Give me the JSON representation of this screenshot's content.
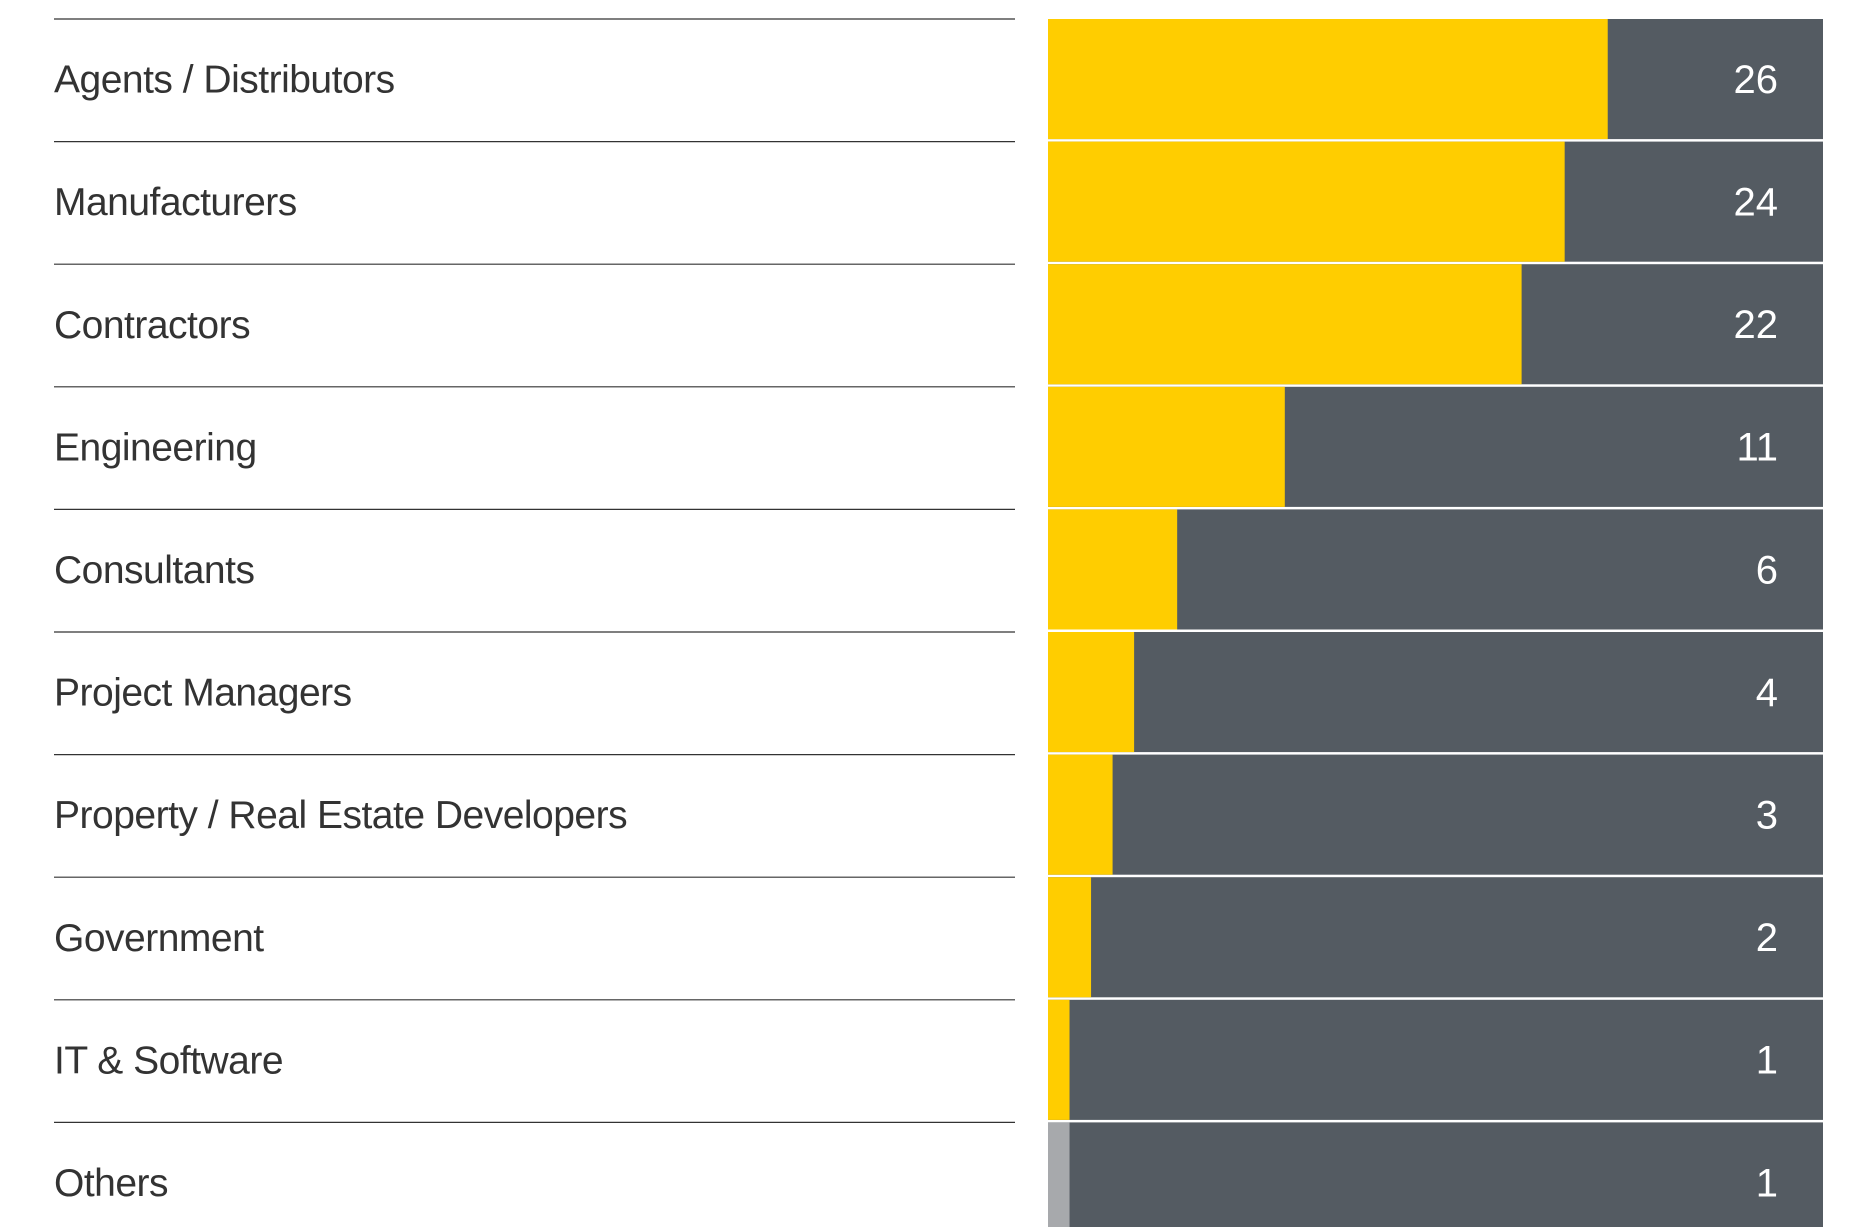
{
  "chart_data": {
    "type": "hbar",
    "categories": [
      "Agents / Distributors",
      "Manufacturers",
      "Contractors",
      "Engineering",
      "Consultants",
      "Project Managers",
      "Property / Real Estate Developers",
      "Government",
      "IT & Software",
      "Others"
    ],
    "values": [
      26,
      24,
      22,
      11,
      6,
      4,
      3,
      2,
      1,
      1
    ],
    "colors": [
      "#ffcd00",
      "#ffcd00",
      "#ffcd00",
      "#ffcd00",
      "#ffcd00",
      "#ffcd00",
      "#ffcd00",
      "#ffcd00",
      "#ffcd00",
      "#a7a9ac"
    ],
    "track_color": "#545b62",
    "xlim": [
      0,
      36
    ]
  }
}
